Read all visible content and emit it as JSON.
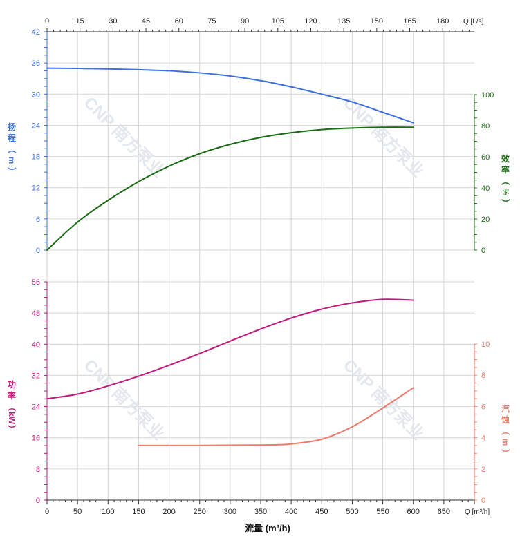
{
  "colors": {
    "head": "#3b6fe0",
    "efficiency": "#1a6b14",
    "power": "#c2187a",
    "npsh": "#f07a6a",
    "grid": "#d6d6d6",
    "axis": "#333333"
  },
  "chart_data": {
    "type": "line",
    "grid": true,
    "x_axis": {
      "label": "流量 (m³/h)",
      "unit": "Q [m³/h]",
      "range": [
        0,
        700
      ],
      "ticks": [
        0,
        50,
        100,
        150,
        200,
        250,
        300,
        350,
        400,
        450,
        500,
        550,
        600,
        650
      ]
    },
    "x_axis_top": {
      "unit": "Q [L/s]",
      "range": [
        0,
        194.4
      ],
      "ticks": [
        0,
        15,
        30,
        45,
        60,
        75,
        90,
        105,
        120,
        135,
        150,
        165,
        180
      ]
    },
    "y_axes": {
      "head": {
        "label_chars": [
          "扬",
          "程",
          "（",
          "m",
          "）"
        ],
        "range": [
          0,
          42
        ],
        "ticks": [
          0,
          6,
          12,
          18,
          24,
          30,
          36,
          42
        ]
      },
      "efficiency": {
        "label_chars": [
          "效",
          "率",
          "（",
          "%",
          "）"
        ],
        "range": [
          0,
          100
        ],
        "ticks": [
          0,
          20,
          40,
          60,
          80,
          100
        ]
      },
      "power": {
        "label_chars": [
          "功",
          "率",
          "（",
          "kW",
          "）"
        ],
        "range": [
          0,
          56
        ],
        "ticks": [
          0,
          8,
          16,
          24,
          32,
          40,
          48,
          56
        ]
      },
      "npsh": {
        "label_chars": [
          "汽",
          "蚀",
          "（",
          "m",
          "）"
        ],
        "range": [
          0,
          10
        ],
        "ticks": [
          0,
          2,
          4,
          6,
          8,
          10
        ]
      }
    },
    "series": [
      {
        "key": "head",
        "axis": "head",
        "x": [
          0,
          50,
          100,
          150,
          200,
          250,
          300,
          350,
          400,
          450,
          500,
          550,
          600
        ],
        "values": [
          35.0,
          34.95,
          34.85,
          34.7,
          34.5,
          34.1,
          33.5,
          32.6,
          31.4,
          30.0,
          28.5,
          26.5,
          24.5
        ]
      },
      {
        "key": "efficiency",
        "axis": "efficiency",
        "x": [
          0,
          50,
          100,
          150,
          200,
          250,
          300,
          350,
          400,
          450,
          500,
          550,
          600
        ],
        "values": [
          0,
          18,
          32,
          44,
          54,
          62,
          68,
          72.5,
          75.5,
          77.5,
          78.5,
          79,
          79
        ]
      },
      {
        "key": "power",
        "axis": "power",
        "x": [
          0,
          50,
          100,
          150,
          200,
          250,
          300,
          350,
          400,
          450,
          500,
          550,
          600
        ],
        "values": [
          26,
          27.2,
          29.3,
          31.8,
          34.6,
          37.6,
          40.8,
          43.9,
          46.7,
          49.0,
          50.6,
          51.5,
          51.3
        ]
      },
      {
        "key": "npsh",
        "axis": "npsh",
        "x": [
          150,
          200,
          250,
          300,
          350,
          380,
          400,
          450,
          500,
          550,
          600
        ],
        "values": [
          3.5,
          3.5,
          3.5,
          3.52,
          3.53,
          3.55,
          3.6,
          3.9,
          4.7,
          5.9,
          7.2
        ]
      }
    ],
    "watermarks": [
      "CNP 南方泵业",
      "CNP 南方泵业",
      "CNP 南方泵业",
      "CNP 南方泵业"
    ]
  }
}
